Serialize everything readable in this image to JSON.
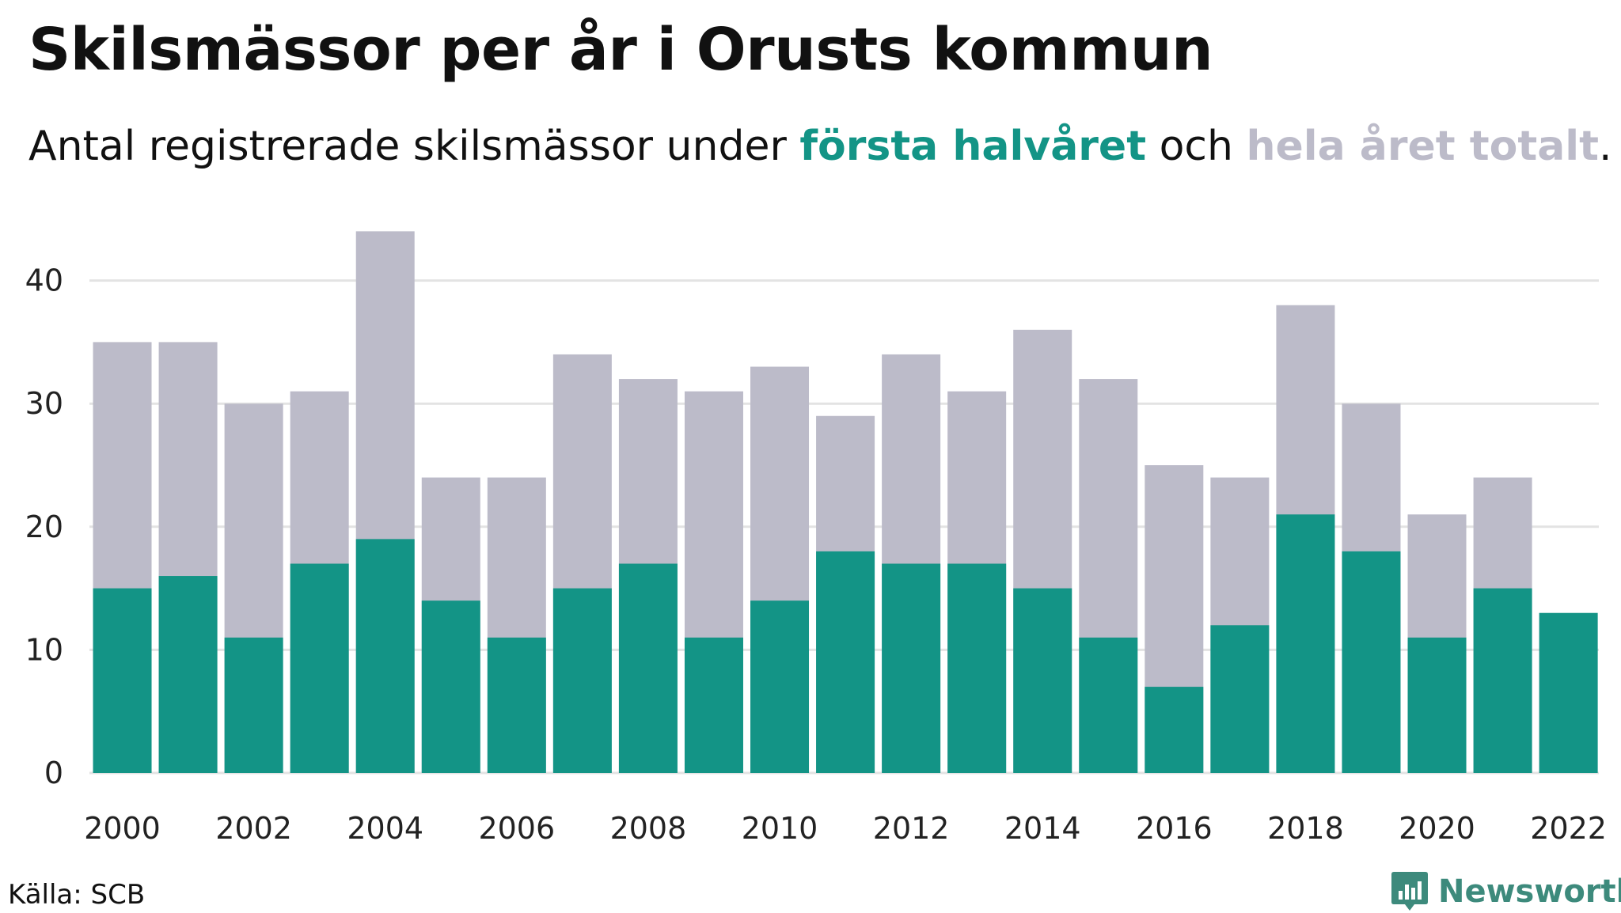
{
  "header": {
    "title": "Skilsmässor per år i Orusts kommun",
    "subtitle_pre": "Antal registrerade skilsmässor under ",
    "subtitle_hl1": "första halvåret",
    "subtitle_mid": " och ",
    "subtitle_hl2": "hela året totalt",
    "subtitle_post": "."
  },
  "colors": {
    "first_half": "#139486",
    "full_year": "#bcbbc9",
    "grid": "#e3e3e3",
    "logo": "#3d8a7c"
  },
  "chart_data": {
    "type": "bar",
    "stacking": "overlay",
    "x": [
      2000,
      2001,
      2002,
      2003,
      2004,
      2005,
      2006,
      2007,
      2008,
      2009,
      2010,
      2011,
      2012,
      2013,
      2014,
      2015,
      2016,
      2017,
      2018,
      2019,
      2020,
      2021,
      2022
    ],
    "series": [
      {
        "name": "hela året totalt",
        "values": [
          35,
          35,
          30,
          31,
          44,
          24,
          24,
          34,
          32,
          31,
          33,
          29,
          34,
          31,
          36,
          32,
          25,
          24,
          38,
          30,
          21,
          24,
          null
        ]
      },
      {
        "name": "första halvåret",
        "values": [
          15,
          16,
          11,
          17,
          19,
          14,
          11,
          15,
          17,
          11,
          14,
          18,
          17,
          17,
          15,
          11,
          7,
          12,
          21,
          18,
          11,
          15,
          13
        ]
      }
    ],
    "x_ticks": [
      "2000",
      "2002",
      "2004",
      "2006",
      "2008",
      "2010",
      "2012",
      "2014",
      "2016",
      "2018",
      "2020",
      "2022"
    ],
    "y_ticks": [
      "0",
      "10",
      "20",
      "30",
      "40"
    ],
    "ylim": [
      0,
      44
    ],
    "grid": "horizontal",
    "legend": "in subtitle",
    "source": "Källa: SCB"
  },
  "footer": {
    "source": "Källa: SCB",
    "logo_text": "Newsworthy",
    "logo_icon": "newsworthy-chart-icon"
  }
}
